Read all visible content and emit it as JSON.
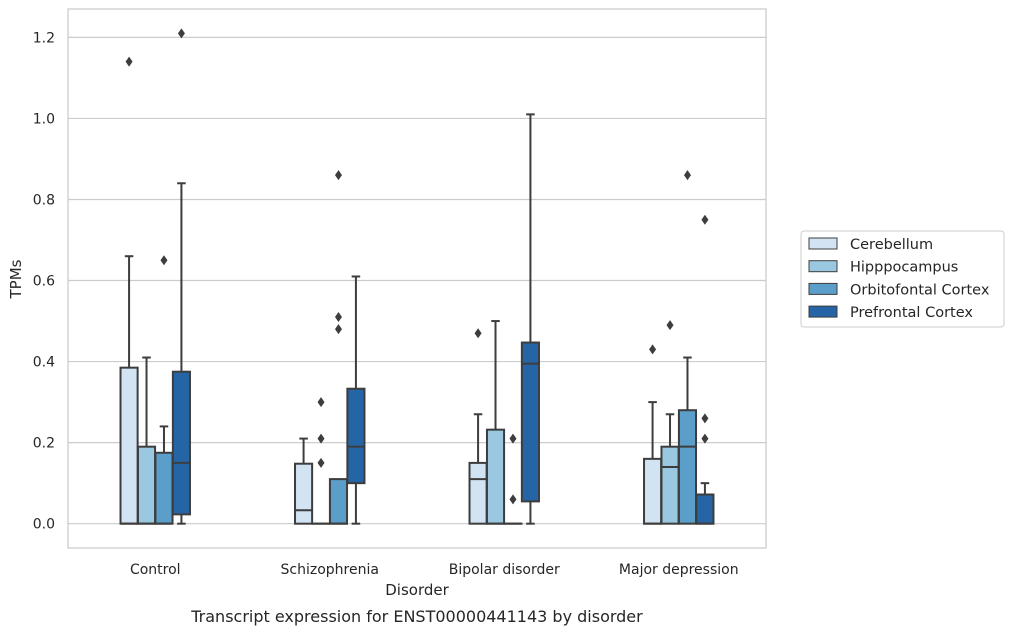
{
  "chart_data": {
    "type": "box",
    "caption": "Transcript expression for ENST00000441143 by disorder",
    "xlabel": "Disorder",
    "ylabel": "TPMs",
    "ylim": [
      -0.06,
      1.27
    ],
    "yticks": [
      0.0,
      0.2,
      0.4,
      0.6,
      0.8,
      1.0,
      1.2
    ],
    "ytick_labels": [
      "0.0",
      "0.2",
      "0.4",
      "0.6",
      "0.8",
      "1.0",
      "1.2"
    ],
    "grid": "horizontal",
    "legend_position": "right",
    "categories": [
      "Control",
      "Schizophrenia",
      "Bipolar disorder",
      "Major depression"
    ],
    "series": [
      {
        "name": "Cerebellum",
        "color": "#d2e3f3",
        "boxes": [
          {
            "q1": 0.0,
            "median": 0.0,
            "q3": 0.385,
            "whisker_low": 0.0,
            "whisker_high": 0.66,
            "outliers": [
              1.14
            ]
          },
          {
            "q1": 0.0,
            "median": 0.033,
            "q3": 0.148,
            "whisker_low": 0.0,
            "whisker_high": 0.21,
            "outliers": []
          },
          {
            "q1": 0.0,
            "median": 0.11,
            "q3": 0.15,
            "whisker_low": 0.0,
            "whisker_high": 0.27,
            "outliers": [
              0.47
            ]
          },
          {
            "q1": 0.0,
            "median": 0.0,
            "q3": 0.16,
            "whisker_low": 0.0,
            "whisker_high": 0.3,
            "outliers": [
              0.43
            ]
          }
        ]
      },
      {
        "name": "Hipppocampus",
        "color": "#9ac8e0",
        "boxes": [
          {
            "q1": 0.0,
            "median": 0.0,
            "q3": 0.19,
            "whisker_low": 0.0,
            "whisker_high": 0.41,
            "outliers": []
          },
          {
            "q1": 0.0,
            "median": 0.0,
            "q3": 0.0,
            "whisker_low": 0.0,
            "whisker_high": 0.0,
            "outliers": [
              0.15,
              0.21,
              0.3
            ]
          },
          {
            "q1": 0.0,
            "median": 0.0,
            "q3": 0.232,
            "whisker_low": 0.0,
            "whisker_high": 0.5,
            "outliers": []
          },
          {
            "q1": 0.0,
            "median": 0.14,
            "q3": 0.19,
            "whisker_low": 0.0,
            "whisker_high": 0.27,
            "outliers": [
              0.49
            ]
          }
        ]
      },
      {
        "name": "Orbitofontal Cortex",
        "color": "#5a9ec9",
        "boxes": [
          {
            "q1": 0.0,
            "median": 0.0,
            "q3": 0.175,
            "whisker_low": 0.0,
            "whisker_high": 0.24,
            "outliers": [
              0.65
            ]
          },
          {
            "q1": 0.0,
            "median": 0.0,
            "q3": 0.11,
            "whisker_low": 0.0,
            "whisker_high": 0.11,
            "outliers": [
              0.48,
              0.51,
              0.86
            ]
          },
          {
            "q1": 0.0,
            "median": 0.0,
            "q3": 0.0,
            "whisker_low": 0.0,
            "whisker_high": 0.0,
            "outliers": [
              0.06,
              0.21
            ]
          },
          {
            "q1": 0.0,
            "median": 0.19,
            "q3": 0.28,
            "whisker_low": 0.0,
            "whisker_high": 0.41,
            "outliers": [
              0.86
            ]
          }
        ]
      },
      {
        "name": "Prefrontal Cortex",
        "color": "#2565a6",
        "boxes": [
          {
            "q1": 0.023,
            "median": 0.15,
            "q3": 0.375,
            "whisker_low": 0.0,
            "whisker_high": 0.84,
            "outliers": [
              1.21
            ]
          },
          {
            "q1": 0.1,
            "median": 0.19,
            "q3": 0.333,
            "whisker_low": 0.0,
            "whisker_high": 0.61,
            "outliers": []
          },
          {
            "q1": 0.055,
            "median": 0.395,
            "q3": 0.447,
            "whisker_low": 0.0,
            "whisker_high": 1.01,
            "outliers": []
          },
          {
            "q1": 0.0,
            "median": 0.0,
            "q3": 0.072,
            "whisker_low": 0.0,
            "whisker_high": 0.1,
            "outliers": [
              0.21,
              0.26,
              0.75
            ]
          }
        ]
      }
    ]
  }
}
